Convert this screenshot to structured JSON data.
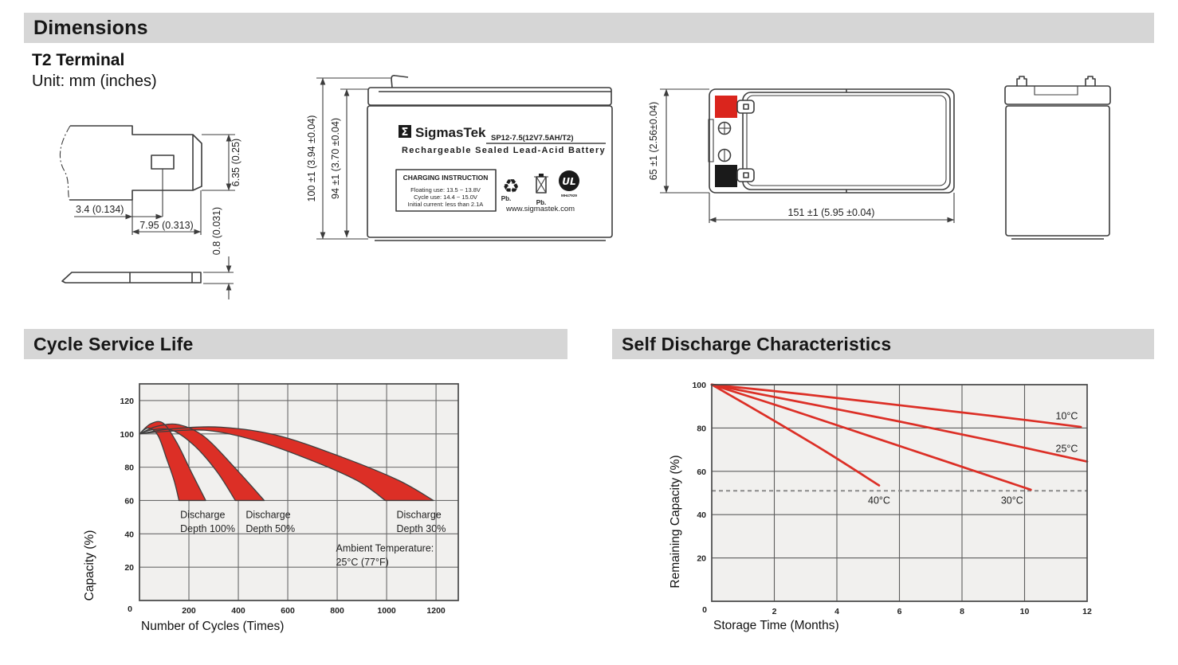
{
  "sections": {
    "dimensions": {
      "title": "Dimensions"
    },
    "cycle": {
      "title": "Cycle Service Life"
    },
    "self_discharge": {
      "title": "Self Discharge Characteristics"
    }
  },
  "terminal_detail": {
    "title": "T2 Terminal",
    "unit": "Unit: mm (inches)",
    "dim_tab_height": "6.35 (0.25)",
    "dim_offset": "3.4 (0.134)",
    "dim_base_width": "7.95 (0.313)",
    "dim_thickness": "0.8 (0.031)"
  },
  "front_view": {
    "dim_total_height": "100 ±1 (3.94 ±0.04)",
    "dim_case_height": "94 ±1 (3.70 ±0.04)",
    "logo_glyph": "Σ",
    "brand": "SigmasTek",
    "model": "SP12-7.5(12V7.5AH/T2)",
    "product_line": "Rechargeable Sealed Lead-Acid Battery",
    "charging_title": "CHARGING INSTRUCTION",
    "charging_lines": [
      "Floating use: 13.5 ~ 13.8V",
      "Cycle use: 14.4 ~ 15.0V",
      "Initial current: less than 2.1A"
    ],
    "pb_recycle": "Pb.",
    "pb_bin": "Pb.",
    "ul_letters": "UL",
    "ul_code": "MH47929",
    "website": "www.sigmastek.com"
  },
  "top_view": {
    "dim_height": "65 ±1 (2.56±0.04)",
    "dim_width": "151 ±1 (5.95 ±0.04)",
    "positive_color": "#da251d",
    "negative_color": "#1a1a1a"
  },
  "chart_data": [
    {
      "type": "area",
      "title": "Cycle Service Life",
      "xlabel": "Number of Cycles (Times)",
      "ylabel": "Capacity (%)",
      "xlim": [
        0,
        1290
      ],
      "ylim": [
        0,
        130
      ],
      "xticks": [
        200,
        400,
        600,
        800,
        1000,
        1200
      ],
      "yticks": [
        0,
        20,
        40,
        60,
        80,
        100,
        120
      ],
      "origin_label": "0",
      "origin_dx": 12,
      "grid": true,
      "plot_bg": "#f1f0ee",
      "grid_color": "#6a6a6a",
      "band_color": "#dc2f26",
      "bands": [
        {
          "name": "Discharge Depth 30%",
          "upper": [
            [
              0,
              100
            ],
            [
              130,
              103
            ],
            [
              330,
              104
            ],
            [
              560,
              99
            ],
            [
              820,
              86
            ],
            [
              1050,
              72
            ],
            [
              1190,
              60
            ]
          ],
          "lower": [
            [
              0,
              100
            ],
            [
              110,
              101.5
            ],
            [
              280,
              102
            ],
            [
              470,
              96
            ],
            [
              680,
              85
            ],
            [
              880,
              72
            ],
            [
              995,
              60
            ]
          ]
        },
        {
          "name": "Discharge Depth 50%",
          "upper": [
            [
              0,
              100
            ],
            [
              70,
              104.5
            ],
            [
              160,
              105.5
            ],
            [
              265,
              98
            ],
            [
              390,
              79
            ],
            [
              505,
              60
            ]
          ],
          "lower": [
            [
              0,
              100
            ],
            [
              55,
              102.5
            ],
            [
              135,
              102
            ],
            [
              225,
              92.5
            ],
            [
              315,
              77
            ],
            [
              388,
              60
            ]
          ]
        },
        {
          "name": "Discharge Depth 100%",
          "upper": [
            [
              0,
              100
            ],
            [
              45,
              106
            ],
            [
              95,
              106.5
            ],
            [
              150,
              95
            ],
            [
              210,
              77
            ],
            [
              268,
              60
            ]
          ],
          "lower": [
            [
              0,
              100
            ],
            [
              35,
              103.5
            ],
            [
              75,
              99
            ],
            [
              110,
              85
            ],
            [
              140,
              72
            ],
            [
              160,
              60
            ]
          ]
        }
      ],
      "annotations": [
        {
          "x": 165,
          "y": 49.5,
          "lines": [
            "Discharge",
            "Depth 100%"
          ]
        },
        {
          "x": 430,
          "y": 49.5,
          "lines": [
            "Discharge",
            "Depth 50%"
          ]
        },
        {
          "x": 1040,
          "y": 49.5,
          "lines": [
            "Discharge",
            "Depth 30%"
          ]
        },
        {
          "x": 795,
          "y": 29.5,
          "lines": [
            "Ambient Temperature:",
            "25°C (77°F)"
          ]
        }
      ],
      "ylabel_x": 17,
      "ylabel_y": 242,
      "xlabel_dx": 2,
      "xlabel_dy": 37
    },
    {
      "type": "line",
      "title": "Self Discharge Characteristics",
      "xlabel": "Storage Time (Months)",
      "ylabel": "Remaining Capacity (%)",
      "xlim": [
        0,
        12
      ],
      "ylim": [
        0,
        100
      ],
      "xticks": [
        0,
        2,
        4,
        6,
        8,
        10,
        12
      ],
      "yticks": [
        0,
        20,
        40,
        60,
        80,
        100
      ],
      "origin_label": "0",
      "origin_dx": 9,
      "grid": true,
      "plot_bg": "#f1f0ee",
      "grid_color": "#5e5e5e",
      "line_color": "#dc2f26",
      "dashed_line_y": 51,
      "series": [
        {
          "name": "10°C",
          "points": [
            [
              0,
              100
            ],
            [
              3,
              95.5
            ],
            [
              6,
              90.5
            ],
            [
              9,
              85.5
            ],
            [
              11.8,
              80.5
            ]
          ],
          "label_pos": [
            11.35,
            84
          ]
        },
        {
          "name": "25°C",
          "points": [
            [
              0,
              100
            ],
            [
              3,
              91.5
            ],
            [
              6,
              83
            ],
            [
              9,
              74
            ],
            [
              12,
              64.5
            ]
          ],
          "label_pos": [
            11.35,
            69
          ]
        },
        {
          "name": "30°C",
          "points": [
            [
              0,
              100
            ],
            [
              2.5,
              88.5
            ],
            [
              5,
              76.5
            ],
            [
              7.5,
              64.5
            ],
            [
              10.2,
              51.5
            ]
          ],
          "label_pos": [
            9.6,
            45
          ]
        },
        {
          "name": "40°C",
          "points": [
            [
              0,
              100
            ],
            [
              1.8,
              85
            ],
            [
              3.6,
              69.5
            ],
            [
              5.35,
              53.5
            ]
          ],
          "label_pos": [
            5.35,
            45
          ]
        }
      ],
      "ylabel_x": 24,
      "ylabel_y": 187,
      "xlabel_dx": 2,
      "xlabel_dy": 35
    }
  ]
}
